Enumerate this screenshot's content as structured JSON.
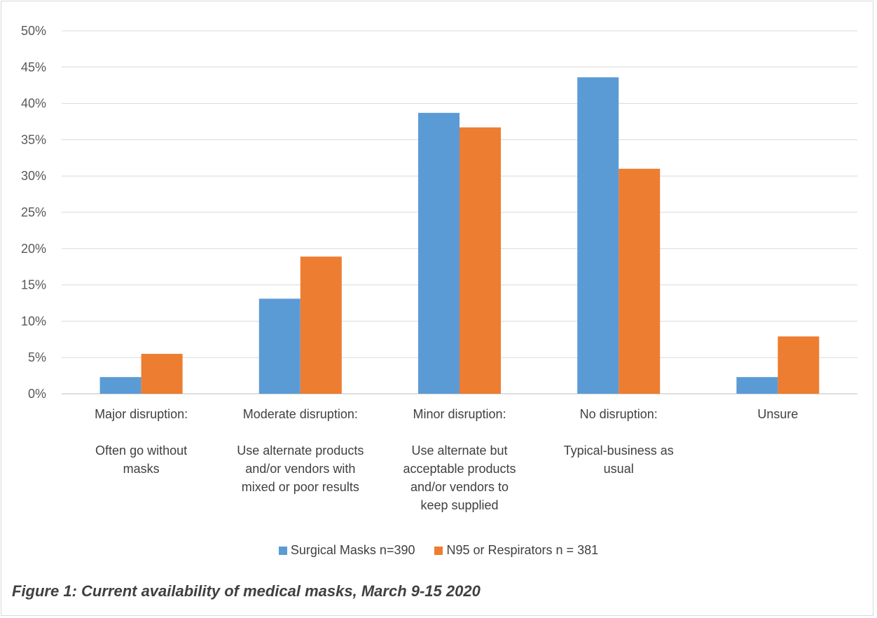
{
  "caption": "Figure 1: Current availability of medical masks, March 9-15 2020",
  "chart_data": {
    "type": "bar",
    "title": "",
    "xlabel": "",
    "ylabel": "",
    "ylim": [
      0,
      50
    ],
    "yticks": [
      "0%",
      "5%",
      "10%",
      "15%",
      "20%",
      "25%",
      "30%",
      "35%",
      "40%",
      "45%",
      "50%"
    ],
    "grid": true,
    "legend_position": "bottom",
    "categories": [
      [
        "Major disruption:",
        "",
        "Often go without",
        "masks"
      ],
      [
        "Moderate disruption:",
        "",
        "Use alternate products",
        "and/or vendors with",
        "mixed or poor results"
      ],
      [
        "Minor disruption:",
        "",
        "Use alternate but",
        "acceptable products",
        "and/or vendors to",
        "keep supplied"
      ],
      [
        "No disruption:",
        "",
        "Typical-business as",
        "usual"
      ],
      [
        "Unsure"
      ]
    ],
    "series": [
      {
        "name": "Surgical Masks n=390",
        "color": "#5b9bd5",
        "values": [
          2.3,
          13.1,
          38.7,
          43.6,
          2.3
        ]
      },
      {
        "name": "N95 or Respirators n = 381",
        "color": "#ed7d31",
        "values": [
          5.5,
          18.9,
          36.7,
          31.0,
          7.9
        ]
      }
    ]
  }
}
